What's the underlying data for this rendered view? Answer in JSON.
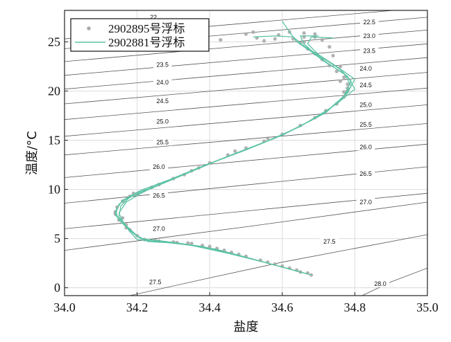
{
  "chart_data": {
    "type": "scatter",
    "title": "",
    "xlabel": "盐度",
    "ylabel": "温度/°C",
    "xlim": [
      34.0,
      35.0
    ],
    "ylim": [
      -0.8,
      28.2
    ],
    "x_ticks": [
      "34.0",
      "34.2",
      "34.4",
      "34.6",
      "34.8",
      "35.0"
    ],
    "x_tick_values": [
      34.0,
      34.2,
      34.4,
      34.6,
      34.8,
      35.0
    ],
    "y_ticks": [
      "0",
      "5",
      "10",
      "15",
      "20",
      "25"
    ],
    "y_tick_values": [
      0,
      5,
      10,
      15,
      20,
      25
    ],
    "grid": true,
    "legend_position": "top-left",
    "series": [
      {
        "name": "2902895号浮标",
        "kind": "points",
        "color": "#aaaaaa",
        "points": [
          [
            34.68,
            1.3
          ],
          [
            34.65,
            1.6
          ],
          [
            34.62,
            2.0
          ],
          [
            34.58,
            2.4
          ],
          [
            34.54,
            2.8
          ],
          [
            34.5,
            3.2
          ],
          [
            34.46,
            3.6
          ],
          [
            34.42,
            4.0
          ],
          [
            34.38,
            4.3
          ],
          [
            34.34,
            4.55
          ],
          [
            34.3,
            4.65
          ],
          [
            34.26,
            4.75
          ],
          [
            34.22,
            4.9
          ],
          [
            34.2,
            5.3
          ],
          [
            34.18,
            5.9
          ],
          [
            34.17,
            6.4
          ],
          [
            34.15,
            6.9
          ],
          [
            34.14,
            7.5
          ],
          [
            34.145,
            8.2
          ],
          [
            34.16,
            8.8
          ],
          [
            34.18,
            9.3
          ],
          [
            34.22,
            9.9
          ],
          [
            34.26,
            10.5
          ],
          [
            34.3,
            11.1
          ],
          [
            34.35,
            11.9
          ],
          [
            34.4,
            12.7
          ],
          [
            34.45,
            13.5
          ],
          [
            34.5,
            14.2
          ],
          [
            34.55,
            14.9
          ],
          [
            34.6,
            15.6
          ],
          [
            34.65,
            16.5
          ],
          [
            34.69,
            17.3
          ],
          [
            34.72,
            18.0
          ],
          [
            34.75,
            18.7
          ],
          [
            34.77,
            19.4
          ],
          [
            34.78,
            20.0
          ],
          [
            34.78,
            20.7
          ],
          [
            34.77,
            21.4
          ],
          [
            34.75,
            22.0
          ],
          [
            34.73,
            22.6
          ],
          [
            34.71,
            23.2
          ],
          [
            34.69,
            23.8
          ],
          [
            34.67,
            24.3
          ],
          [
            34.65,
            24.9
          ],
          [
            34.63,
            25.3
          ],
          [
            34.66,
            25.5
          ],
          [
            34.69,
            25.8
          ],
          [
            34.58,
            25.3
          ],
          [
            34.55,
            25.1
          ],
          [
            34.53,
            25.4
          ],
          [
            34.71,
            25.2
          ],
          [
            34.74,
            23.6
          ],
          [
            34.76,
            21.0
          ],
          [
            34.47,
            13.9
          ],
          [
            34.37,
            12.2
          ],
          [
            34.24,
            10.2
          ],
          [
            34.19,
            9.6
          ],
          [
            34.25,
            4.8
          ],
          [
            34.44,
            3.8
          ],
          [
            34.6,
            2.2
          ],
          [
            34.2,
            9.5
          ],
          [
            34.17,
            6.1
          ],
          [
            34.52,
            26.0
          ],
          [
            34.62,
            26.0
          ],
          [
            34.66,
            25.9
          ],
          [
            34.69,
            25.5
          ],
          [
            34.73,
            24.5
          ],
          [
            34.76,
            22.5
          ],
          [
            34.78,
            20.3
          ],
          [
            34.77,
            19.9
          ],
          [
            34.56,
            15.2
          ],
          [
            34.33,
            11.5
          ],
          [
            34.16,
            7.1
          ],
          [
            34.14,
            7.7
          ],
          [
            34.31,
            4.6
          ],
          [
            34.35,
            4.5
          ],
          [
            34.4,
            4.2
          ],
          [
            34.48,
            3.4
          ],
          [
            34.56,
            2.6
          ],
          [
            34.64,
            1.8
          ],
          [
            34.67,
            1.5
          ],
          [
            34.5,
            25.8
          ],
          [
            34.59,
            25.7
          ],
          [
            34.43,
            25.2
          ],
          [
            34.66,
            25.0
          ]
        ]
      },
      {
        "name": "2902881号浮标",
        "kind": "lines",
        "color": "#5cc2a5",
        "profiles": [
          [
            [
              34.67,
              1.4
            ],
            [
              34.6,
              2.1
            ],
            [
              34.5,
              3.1
            ],
            [
              34.4,
              4.0
            ],
            [
              34.3,
              4.6
            ],
            [
              34.22,
              4.8
            ],
            [
              34.19,
              5.5
            ],
            [
              34.16,
              6.6
            ],
            [
              34.14,
              7.4
            ],
            [
              34.15,
              8.5
            ],
            [
              34.19,
              9.5
            ],
            [
              34.27,
              10.6
            ],
            [
              34.37,
              12.2
            ],
            [
              34.48,
              13.8
            ],
            [
              34.6,
              15.5
            ],
            [
              34.7,
              17.4
            ],
            [
              34.76,
              19.0
            ],
            [
              34.79,
              20.5
            ],
            [
              34.77,
              21.8
            ],
            [
              34.72,
              22.9
            ],
            [
              34.68,
              24.0
            ],
            [
              34.64,
              25.0
            ],
            [
              34.62,
              26.0
            ],
            [
              34.6,
              27.1
            ]
          ],
          [
            [
              34.66,
              1.5
            ],
            [
              34.58,
              2.3
            ],
            [
              34.48,
              3.3
            ],
            [
              34.38,
              4.2
            ],
            [
              34.28,
              4.7
            ],
            [
              34.21,
              5.0
            ],
            [
              34.18,
              5.8
            ],
            [
              34.15,
              6.9
            ],
            [
              34.14,
              7.8
            ],
            [
              34.16,
              8.9
            ],
            [
              34.21,
              9.9
            ],
            [
              34.29,
              11.0
            ],
            [
              34.39,
              12.5
            ],
            [
              34.5,
              14.0
            ],
            [
              34.62,
              15.9
            ],
            [
              34.72,
              17.8
            ],
            [
              34.77,
              19.5
            ],
            [
              34.79,
              21.0
            ],
            [
              34.76,
              22.2
            ],
            [
              34.71,
              23.4
            ],
            [
              34.66,
              24.6
            ],
            [
              34.63,
              25.5
            ],
            [
              34.58,
              25.6
            ],
            [
              34.52,
              25.5
            ]
          ],
          [
            [
              34.68,
              1.3
            ],
            [
              34.62,
              1.9
            ],
            [
              34.52,
              2.9
            ],
            [
              34.42,
              3.9
            ],
            [
              34.32,
              4.5
            ],
            [
              34.23,
              4.7
            ],
            [
              34.2,
              5.3
            ],
            [
              34.17,
              6.3
            ],
            [
              34.15,
              7.2
            ],
            [
              34.155,
              8.3
            ],
            [
              34.18,
              9.2
            ],
            [
              34.25,
              10.3
            ],
            [
              34.35,
              11.9
            ],
            [
              34.46,
              13.5
            ],
            [
              34.58,
              15.2
            ],
            [
              34.68,
              17.0
            ],
            [
              34.75,
              18.7
            ],
            [
              34.8,
              20.2
            ],
            [
              34.78,
              21.5
            ],
            [
              34.73,
              22.7
            ],
            [
              34.69,
              23.8
            ],
            [
              34.66,
              24.8
            ],
            [
              34.65,
              25.6
            ],
            [
              34.7,
              25.6
            ]
          ],
          [
            [
              34.65,
              1.6
            ],
            [
              34.55,
              2.6
            ],
            [
              34.45,
              3.5
            ],
            [
              34.35,
              4.3
            ],
            [
              34.26,
              4.7
            ],
            [
              34.2,
              4.9
            ],
            [
              34.18,
              5.7
            ],
            [
              34.16,
              6.8
            ],
            [
              34.15,
              7.6
            ],
            [
              34.17,
              8.7
            ],
            [
              34.22,
              9.8
            ],
            [
              34.31,
              11.2
            ],
            [
              34.42,
              12.9
            ],
            [
              34.54,
              14.6
            ],
            [
              34.65,
              16.4
            ],
            [
              34.73,
              18.2
            ],
            [
              34.78,
              19.8
            ],
            [
              34.8,
              21.2
            ],
            [
              34.75,
              22.5
            ],
            [
              34.7,
              23.7
            ],
            [
              34.67,
              24.8
            ],
            [
              34.68,
              25.5
            ],
            [
              34.74,
              25.4
            ]
          ]
        ]
      }
    ],
    "isopycnals": [
      {
        "label": "22",
        "points": [
          [
            34.0,
            25.3
          ],
          [
            35.0,
            28.5
          ]
        ]
      },
      {
        "label": "22.5",
        "points": [
          [
            34.0,
            24.3
          ],
          [
            35.0,
            27.5
          ]
        ]
      },
      {
        "label": "23.0",
        "points": [
          [
            34.0,
            23.0
          ],
          [
            35.0,
            26.2
          ]
        ]
      },
      {
        "label": "23.5",
        "points": [
          [
            34.0,
            21.6
          ],
          [
            35.0,
            24.8
          ]
        ]
      },
      {
        "label": "24.0",
        "points": [
          [
            34.0,
            20.2
          ],
          [
            35.0,
            23.4
          ]
        ]
      },
      {
        "label": "24.5",
        "points": [
          [
            34.0,
            18.7
          ],
          [
            35.0,
            21.9
          ]
        ]
      },
      {
        "label": "25.0",
        "points": [
          [
            34.0,
            17.1
          ],
          [
            35.0,
            20.3
          ]
        ]
      },
      {
        "label": "25.5",
        "points": [
          [
            34.0,
            15.4
          ],
          [
            35.0,
            18.6
          ]
        ]
      },
      {
        "label": "26.0",
        "points": [
          [
            34.0,
            13.5
          ],
          [
            35.0,
            16.7
          ]
        ]
      },
      {
        "label": "26.5",
        "points": [
          [
            34.0,
            11.2
          ],
          [
            35.0,
            14.6
          ]
        ]
      },
      {
        "label": "27.0",
        "points": [
          [
            34.0,
            8.6
          ],
          [
            35.0,
            12.3
          ]
        ]
      },
      {
        "label": "27.5",
        "points": [
          [
            34.0,
            3.8
          ],
          [
            34.5,
            6.2
          ],
          [
            35.0,
            8.7
          ]
        ]
      },
      {
        "label": "27.0",
        "points": [
          [
            34.0,
            6.0
          ],
          [
            35.0,
            9.6
          ]
        ]
      },
      {
        "label": "27.5",
        "points": [
          [
            34.18,
            -0.8
          ],
          [
            34.4,
            1.0
          ],
          [
            34.6,
            2.6
          ],
          [
            34.8,
            4.0
          ],
          [
            35.0,
            5.4
          ]
        ]
      },
      {
        "label": "28.0",
        "points": [
          [
            34.82,
            -0.8
          ],
          [
            34.9,
            0.6
          ],
          [
            35.0,
            2.0
          ]
        ]
      }
    ],
    "isopycnal_labels": [
      {
        "text": "22",
        "x": 34.245,
        "y": 27.5
      },
      {
        "text": "22.5",
        "x": 34.84,
        "y": 27.0
      },
      {
        "text": "23.0",
        "x": 34.84,
        "y": 25.6
      },
      {
        "text": "23.5",
        "x": 34.27,
        "y": 22.7
      },
      {
        "text": "23.5",
        "x": 34.84,
        "y": 24.1
      },
      {
        "text": "24.0",
        "x": 34.27,
        "y": 20.9
      },
      {
        "text": "24.0",
        "x": 34.83,
        "y": 22.3
      },
      {
        "text": "24.5",
        "x": 34.27,
        "y": 19.0
      },
      {
        "text": "24.5",
        "x": 34.83,
        "y": 20.6
      },
      {
        "text": "25.0",
        "x": 34.27,
        "y": 16.9
      },
      {
        "text": "25.0",
        "x": 34.83,
        "y": 18.6
      },
      {
        "text": "25.5",
        "x": 34.27,
        "y": 14.8
      },
      {
        "text": "25.5",
        "x": 34.83,
        "y": 16.6
      },
      {
        "text": "26.0",
        "x": 34.26,
        "y": 12.3
      },
      {
        "text": "26.0",
        "x": 34.83,
        "y": 14.3
      },
      {
        "text": "26.5",
        "x": 34.26,
        "y": 9.4
      },
      {
        "text": "26.5",
        "x": 34.83,
        "y": 11.6
      },
      {
        "text": "27.0",
        "x": 34.26,
        "y": 6.0
      },
      {
        "text": "27.0",
        "x": 34.83,
        "y": 8.7
      },
      {
        "text": "27.5",
        "x": 34.73,
        "y": 4.7
      },
      {
        "text": "27.5",
        "x": 34.25,
        "y": 0.6
      },
      {
        "text": "28.0",
        "x": 34.87,
        "y": 0.4
      }
    ]
  }
}
